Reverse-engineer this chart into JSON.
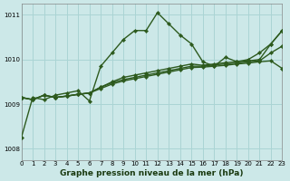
{
  "bg_color": "#cce8e8",
  "grid_color": "#aad4d4",
  "line_color": "#2d5a1e",
  "xlabel": "Graphe pression niveau de la mer (hPa)",
  "xlabel_fontsize": 6.5,
  "xlabel_color": "#1a3a10",
  "xlim": [
    0,
    23
  ],
  "ylim": [
    1007.75,
    1011.25
  ],
  "ytick_vals": [
    1008,
    1009,
    1010,
    1011
  ],
  "xtick_vals": [
    0,
    1,
    2,
    3,
    4,
    5,
    6,
    7,
    8,
    9,
    10,
    11,
    12,
    13,
    14,
    15,
    16,
    17,
    18,
    19,
    20,
    21,
    22,
    23
  ],
  "series": [
    [
      1008.25,
      1009.15,
      1009.1,
      1009.2,
      1009.25,
      1009.3,
      1009.07,
      1009.85,
      1010.15,
      1010.45,
      1010.65,
      1010.65,
      1011.05,
      1010.8,
      1010.55,
      1010.35,
      1009.95,
      1009.85,
      1010.05,
      1009.95,
      1010.0,
      1010.15,
      1010.35,
      1010.65
    ],
    [
      1009.15,
      1009.1,
      1009.2,
      1009.15,
      1009.18,
      1009.22,
      1009.25,
      1009.38,
      1009.5,
      1009.6,
      1009.65,
      1009.7,
      1009.75,
      1009.8,
      1009.85,
      1009.9,
      1009.87,
      1009.9,
      1009.93,
      1009.95,
      1009.97,
      1010.0,
      1010.35,
      1010.65
    ],
    [
      1009.15,
      1009.1,
      1009.2,
      1009.15,
      1009.18,
      1009.22,
      1009.25,
      1009.38,
      1009.48,
      1009.55,
      1009.6,
      1009.65,
      1009.7,
      1009.75,
      1009.8,
      1009.85,
      1009.85,
      1009.88,
      1009.9,
      1009.92,
      1009.95,
      1009.97,
      1010.15,
      1010.3
    ],
    [
      1009.15,
      1009.1,
      1009.2,
      1009.15,
      1009.18,
      1009.22,
      1009.25,
      1009.35,
      1009.45,
      1009.52,
      1009.57,
      1009.62,
      1009.67,
      1009.72,
      1009.77,
      1009.82,
      1009.83,
      1009.85,
      1009.87,
      1009.9,
      1009.92,
      1009.95,
      1009.97,
      1009.8
    ]
  ],
  "line_width": 1.0,
  "marker_size": 2.2,
  "marker": "D"
}
